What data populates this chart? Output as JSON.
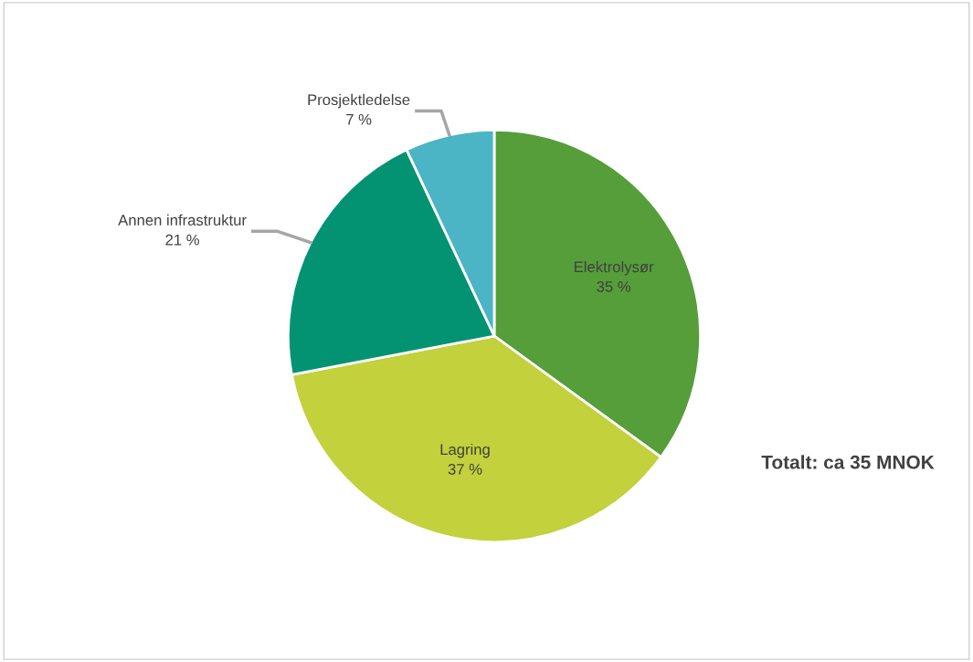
{
  "chart_data": {
    "type": "pie",
    "categories": [
      "Elektrolysør",
      "Lagring",
      "Annen infrastruktur",
      "Prosjektledelse"
    ],
    "values": [
      35,
      37,
      21,
      7
    ],
    "value_labels": [
      "35 %",
      "37 %",
      "21 %",
      "7 %"
    ],
    "colors": [
      "#559e3a",
      "#c2d13c",
      "#039373",
      "#4bb4c5"
    ],
    "annotations": [
      "Totalt: ca 35 MNOK"
    ],
    "legend": false
  }
}
